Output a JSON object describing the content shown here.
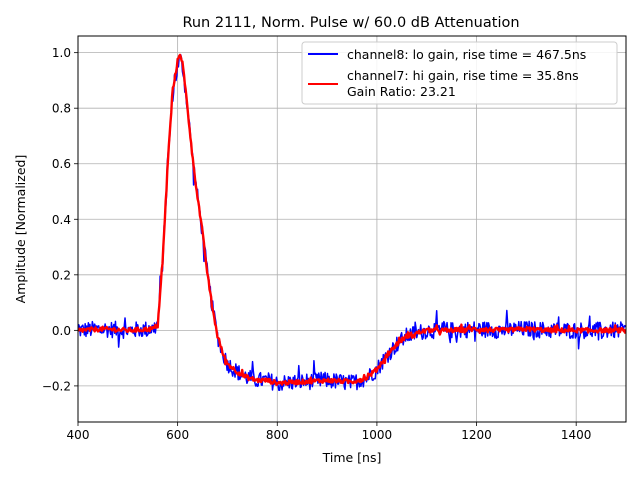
{
  "chart_data": {
    "type": "line",
    "title": "Run 2111, Norm. Pulse w/ 60.0 dB Attenuation",
    "xlabel": "Time [ns]",
    "ylabel": "Amplitude [Normalized]",
    "xlim": [
      400,
      1500
    ],
    "ylim": [
      -0.33,
      1.06
    ],
    "xticks": [
      400,
      600,
      800,
      1000,
      1200,
      1400
    ],
    "xtick_labels": [
      "400",
      "600",
      "800",
      "1000",
      "1200",
      "1400"
    ],
    "yticks": [
      -0.2,
      0.0,
      0.2,
      0.4,
      0.6,
      0.8,
      1.0
    ],
    "ytick_labels": [
      "−0.2",
      "0.0",
      "0.2",
      "0.4",
      "0.6",
      "0.8",
      "1.0"
    ],
    "grid": true,
    "legend_position": "top-right",
    "legend_extra": "Gain Ratio: 23.21",
    "series": [
      {
        "name": "channel8: lo gain, rise time = 467.5ns",
        "color": "#0000ff",
        "noise_amplitude": 0.03,
        "x": [
          400,
          450,
          500,
          550,
          560,
          570,
          580,
          590,
          600,
          605,
          610,
          620,
          630,
          640,
          650,
          660,
          670,
          680,
          690,
          700,
          720,
          740,
          760,
          780,
          800,
          850,
          900,
          950,
          980,
          1000,
          1020,
          1040,
          1060,
          1080,
          1100,
          1150,
          1200,
          1250,
          1300,
          1350,
          1400,
          1450,
          1500
        ],
        "y": [
          0.0,
          0.005,
          0.0,
          0.005,
          0.02,
          0.25,
          0.6,
          0.85,
          0.95,
          0.98,
          0.95,
          0.8,
          0.62,
          0.48,
          0.35,
          0.2,
          0.08,
          -0.02,
          -0.08,
          -0.12,
          -0.15,
          -0.17,
          -0.18,
          -0.18,
          -0.19,
          -0.185,
          -0.18,
          -0.19,
          -0.17,
          -0.14,
          -0.09,
          -0.05,
          -0.02,
          -0.01,
          0.0,
          0.0,
          0.005,
          0.0,
          0.005,
          0.0,
          0.0,
          0.0,
          0.0
        ]
      },
      {
        "name": "channel7: hi gain, rise time = 35.8ns",
        "color": "#ff0000",
        "noise_amplitude": 0.008,
        "x": [
          400,
          450,
          500,
          550,
          560,
          570,
          580,
          590,
          600,
          605,
          610,
          620,
          630,
          640,
          650,
          660,
          670,
          680,
          690,
          700,
          720,
          740,
          760,
          780,
          800,
          850,
          900,
          950,
          980,
          1000,
          1020,
          1040,
          1060,
          1080,
          1100,
          1150,
          1200,
          1250,
          1300,
          1350,
          1400,
          1450,
          1500
        ],
        "y": [
          0.0,
          0.005,
          0.0,
          0.005,
          0.02,
          0.25,
          0.6,
          0.86,
          0.97,
          1.0,
          0.96,
          0.8,
          0.62,
          0.48,
          0.35,
          0.2,
          0.08,
          -0.02,
          -0.08,
          -0.12,
          -0.15,
          -0.17,
          -0.18,
          -0.18,
          -0.19,
          -0.185,
          -0.18,
          -0.185,
          -0.17,
          -0.14,
          -0.09,
          -0.05,
          -0.02,
          -0.01,
          0.0,
          0.0,
          0.005,
          0.0,
          0.005,
          0.0,
          0.0,
          0.0,
          0.0
        ]
      }
    ]
  }
}
